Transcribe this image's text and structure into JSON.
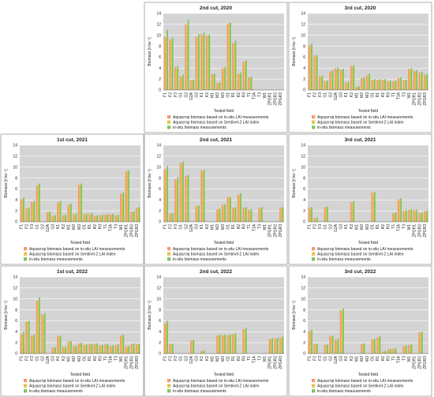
{
  "colors": {
    "series1": "#f29b6c",
    "series2": "#e6c347",
    "series3": "#7cc45a"
  },
  "shared": {
    "ylabel": "Biomass [t·ha⁻¹]",
    "xlabel": "Tested field",
    "ylim": [
      0,
      14
    ],
    "yticks": [
      0,
      2,
      4,
      6,
      8,
      10,
      12,
      14
    ],
    "legend": [
      "Aquacrop biomass based on in-situ LAI measurements",
      "Aquacrop biomass based on Sentinel-2 LAI index",
      "in-situ biomass measurements"
    ]
  },
  "chart_data": [
    {
      "type": "bar",
      "title": "2nd cut, 2020",
      "categories": [
        "F1",
        "F2",
        "F3",
        "G1",
        "G2",
        "G2A",
        "G3",
        "K1",
        "K2",
        "M1",
        "M2",
        "M3",
        "O1",
        "R1",
        "R2",
        "R3",
        "T1",
        "T1A",
        "T3",
        "W1",
        "ZPGR1",
        "ZPGR2",
        "ZPGR3"
      ],
      "series": [
        {
          "values": [
            9.8,
            9.3,
            4.2,
            2.5,
            12.0,
            1.8,
            9.8,
            10.2,
            10.0,
            2.9,
            1.3,
            4.0,
            12.0,
            8.6,
            3.0,
            5.2,
            2.3,
            0,
            0,
            0,
            0,
            0,
            0
          ]
        },
        {
          "values": [
            9.5,
            9.0,
            4.0,
            2.4,
            11.8,
            1.7,
            9.6,
            10.0,
            9.8,
            2.8,
            1.2,
            3.9,
            12.2,
            8.5,
            2.9,
            5.1,
            2.3,
            0,
            0,
            0,
            0,
            0,
            0
          ]
        },
        {
          "values": [
            11.0,
            9.6,
            4.4,
            2.8,
            12.8,
            1.9,
            10.2,
            10.5,
            10.1,
            3.0,
            1.4,
            4.2,
            12.3,
            9.0,
            3.2,
            5.5,
            2.4,
            0,
            0,
            0,
            0,
            0,
            0
          ]
        }
      ]
    },
    {
      "type": "bar",
      "title": "3rd cut, 2020",
      "categories": [
        "F1",
        "F2",
        "F3",
        "G1",
        "G2",
        "G2A",
        "G3",
        "K1",
        "K2",
        "M1",
        "M2",
        "M3",
        "O1",
        "R1",
        "R2",
        "R3",
        "T1",
        "T1A",
        "T3",
        "W1",
        "ZPGR1",
        "ZPGR2",
        "ZPGR3"
      ],
      "series": [
        {
          "values": [
            8.2,
            6.3,
            2.5,
            1.6,
            3.4,
            4.0,
            3.8,
            1.4,
            4.4,
            0.6,
            2.2,
            2.6,
            1.9,
            1.8,
            1.9,
            1.6,
            1.6,
            2.2,
            1.8,
            3.9,
            3.5,
            3.2,
            2.8
          ]
        },
        {
          "values": [
            8.0,
            6.1,
            2.4,
            1.5,
            3.3,
            3.8,
            3.6,
            1.3,
            4.2,
            0.5,
            2.1,
            2.8,
            1.8,
            1.9,
            1.8,
            1.5,
            1.5,
            2.0,
            1.7,
            3.7,
            3.3,
            3.0,
            2.6
          ]
        },
        {
          "values": [
            8.4,
            6.4,
            2.6,
            1.7,
            3.6,
            4.1,
            3.9,
            1.5,
            4.5,
            0.7,
            2.3,
            3.0,
            2.0,
            2.0,
            2.0,
            1.7,
            1.7,
            2.3,
            1.9,
            4.0,
            3.6,
            3.3,
            2.9
          ]
        }
      ]
    },
    {
      "type": "bar",
      "title": "1st cut, 2021",
      "categories": [
        "F1",
        "F2",
        "F3",
        "G1",
        "G2",
        "G2A",
        "G3",
        "K1",
        "K2",
        "M1",
        "M2",
        "M3",
        "O1",
        "R1",
        "R2",
        "R3",
        "T1",
        "T1A",
        "T3",
        "W1",
        "ZPGR1",
        "ZPGR2",
        "ZPGR3"
      ],
      "series": [
        {
          "values": [
            4.2,
            2.5,
            3.6,
            6.6,
            0,
            1.8,
            1.1,
            3.6,
            1.2,
            3.1,
            1.4,
            6.8,
            1.4,
            1.5,
            1.1,
            1.2,
            1.3,
            1.4,
            1.2,
            5.2,
            9.2,
            1.9,
            2.6
          ]
        },
        {
          "values": [
            4.0,
            2.4,
            3.5,
            6.7,
            0,
            1.7,
            1.0,
            3.5,
            1.1,
            3.0,
            1.3,
            6.7,
            1.3,
            1.4,
            1.0,
            1.1,
            1.2,
            1.3,
            1.1,
            5.0,
            9.3,
            1.8,
            2.5
          ]
        },
        {
          "values": [
            4.4,
            2.6,
            3.8,
            7.0,
            0,
            1.9,
            1.2,
            3.8,
            1.3,
            3.3,
            1.5,
            7.0,
            1.5,
            1.6,
            1.2,
            1.3,
            1.4,
            1.5,
            1.3,
            5.4,
            9.4,
            2.0,
            2.7
          ]
        }
      ]
    },
    {
      "type": "bar",
      "title": "2nd cut, 2021",
      "categories": [
        "F1",
        "F2",
        "F3",
        "G1",
        "G2",
        "G2A",
        "G3",
        "K1",
        "K2",
        "M1",
        "M2",
        "M3",
        "O1",
        "R1",
        "R2",
        "R3",
        "T1",
        "T1A",
        "T3",
        "W1",
        "ZPGR1",
        "ZPGR2",
        "ZPGR3"
      ],
      "series": [
        {
          "values": [
            9.6,
            1.5,
            7.8,
            10.8,
            8.4,
            0,
            2.9,
            9.4,
            0,
            0,
            2.3,
            3.1,
            4.6,
            2.6,
            5.0,
            2.6,
            2.2,
            0,
            2.6,
            0,
            0,
            0,
            2.6
          ]
        },
        {
          "values": [
            9.4,
            1.4,
            7.6,
            10.6,
            8.2,
            0,
            2.8,
            9.3,
            0,
            0,
            2.2,
            3.0,
            4.4,
            2.5,
            4.8,
            2.5,
            2.1,
            0,
            2.5,
            0,
            0,
            0,
            2.5
          ]
        },
        {
          "values": [
            10.2,
            1.6,
            8.2,
            11.0,
            8.6,
            0,
            3.0,
            9.5,
            0,
            0,
            2.4,
            3.2,
            4.5,
            2.7,
            5.2,
            2.7,
            2.3,
            0,
            2.7,
            0,
            0,
            0,
            2.7
          ]
        }
      ]
    },
    {
      "type": "bar",
      "title": "3rd cut, 2021",
      "categories": [
        "F1",
        "F2",
        "F3",
        "G1",
        "G2",
        "G2A",
        "G3",
        "K1",
        "K2",
        "M1",
        "M2",
        "M3",
        "O1",
        "R1",
        "R2",
        "R3",
        "T1",
        "T1A",
        "T3",
        "W1",
        "ZPGR1",
        "ZPGR2",
        "ZPGR3"
      ],
      "series": [
        {
          "values": [
            2.6,
            0.7,
            0,
            2.7,
            0,
            0,
            0,
            0,
            3.6,
            0,
            0,
            0,
            5.4,
            0,
            0,
            0,
            1.6,
            4.2,
            2.0,
            2.2,
            2.1,
            1.6,
            2.0
          ]
        },
        {
          "values": [
            2.5,
            0.6,
            0,
            2.6,
            0,
            0,
            0,
            0,
            3.5,
            0,
            0,
            0,
            5.2,
            0,
            0,
            0,
            1.5,
            4.0,
            1.9,
            2.1,
            2.0,
            1.5,
            1.9
          ]
        },
        {
          "values": [
            2.7,
            0.8,
            0,
            2.8,
            0,
            0,
            0,
            0,
            3.8,
            0,
            0,
            0,
            5.5,
            0,
            0,
            0,
            1.7,
            4.3,
            2.1,
            2.3,
            2.2,
            1.7,
            2.1
          ]
        }
      ]
    },
    {
      "type": "bar",
      "title": "1st cut, 2022",
      "categories": [
        "F1",
        "F2",
        "F3",
        "G1",
        "G2",
        "G2A",
        "G3",
        "K1",
        "K2",
        "M1",
        "M2",
        "M3",
        "O1",
        "R1",
        "R2",
        "R3",
        "T1",
        "T1A",
        "T3",
        "W1",
        "ZPGR1",
        "ZPGR2",
        "ZPGR3"
      ],
      "series": [
        {
          "values": [
            3.7,
            5.8,
            3.3,
            9.6,
            7.2,
            0,
            1.1,
            3.2,
            1.2,
            2.2,
            1.4,
            1.9,
            1.6,
            1.7,
            1.8,
            1.5,
            1.7,
            1.4,
            1.6,
            3.3,
            1.3,
            1.8,
            1.7
          ]
        },
        {
          "values": [
            3.5,
            5.9,
            3.2,
            9.8,
            7.0,
            0,
            1.0,
            3.1,
            1.1,
            2.1,
            1.3,
            1.8,
            1.5,
            1.6,
            1.7,
            1.4,
            1.6,
            1.3,
            1.5,
            3.2,
            1.2,
            1.7,
            1.6
          ]
        },
        {
          "values": [
            4.0,
            6.0,
            3.5,
            10.3,
            7.4,
            0,
            1.2,
            3.3,
            1.3,
            2.3,
            1.5,
            2.0,
            1.7,
            1.8,
            1.9,
            1.6,
            1.8,
            1.5,
            1.7,
            3.5,
            1.4,
            1.9,
            1.8
          ]
        }
      ]
    },
    {
      "type": "bar",
      "title": "2nd cut, 2022",
      "categories": [
        "F1",
        "F2",
        "F3",
        "G1",
        "G2",
        "G2A",
        "G3",
        "K1",
        "K2",
        "M1",
        "M2",
        "M3",
        "O1",
        "R1",
        "R2",
        "R3",
        "T1",
        "T1A",
        "T3",
        "W1",
        "ZPGR1",
        "ZPGR2",
        "ZPGR3"
      ],
      "series": [
        {
          "values": [
            5.6,
            1.7,
            0,
            0,
            0,
            2.4,
            0,
            0.5,
            0,
            0,
            3.3,
            3.4,
            3.4,
            3.6,
            0,
            4.5,
            0,
            0,
            0,
            0,
            2.7,
            2.8,
            3.0
          ]
        },
        {
          "values": [
            5.4,
            1.6,
            0,
            0,
            0,
            2.3,
            0,
            0.4,
            0,
            0,
            3.2,
            3.3,
            3.3,
            3.5,
            0,
            4.4,
            0,
            0,
            0,
            0,
            2.6,
            2.7,
            2.9
          ]
        },
        {
          "values": [
            6.0,
            1.8,
            0,
            0,
            0,
            2.5,
            0,
            0.6,
            0,
            0,
            3.5,
            3.5,
            3.5,
            3.7,
            0,
            4.7,
            0,
            0,
            0,
            0,
            2.8,
            2.9,
            3.1
          ]
        }
      ]
    },
    {
      "type": "bar",
      "title": "3rd cut, 2022",
      "categories": [
        "F1",
        "F2",
        "F3",
        "G1",
        "G2",
        "G2A",
        "G3",
        "K1",
        "K2",
        "M1",
        "M2",
        "M3",
        "O1",
        "R1",
        "R2",
        "R3",
        "T1",
        "T1A",
        "T3",
        "W1",
        "ZPGR1",
        "ZPGR2",
        "ZPGR3"
      ],
      "series": [
        {
          "values": [
            4.2,
            1.7,
            0,
            1.6,
            3.2,
            2.6,
            8.0,
            0,
            0,
            0,
            1.8,
            0,
            2.6,
            3.0,
            0.4,
            0.8,
            0.9,
            0,
            1.4,
            1.6,
            0,
            3.9,
            0
          ]
        },
        {
          "values": [
            4.0,
            1.6,
            0,
            1.5,
            3.1,
            2.5,
            7.8,
            0,
            0,
            0,
            1.7,
            0,
            2.5,
            2.9,
            0.3,
            0.7,
            0.8,
            0,
            1.3,
            1.5,
            0,
            3.8,
            0
          ]
        },
        {
          "values": [
            4.4,
            1.8,
            0,
            1.7,
            3.3,
            2.8,
            8.3,
            0,
            0,
            0,
            1.9,
            0,
            2.7,
            3.2,
            0.5,
            0.9,
            1.0,
            0,
            1.5,
            1.7,
            0,
            4.0,
            0
          ]
        }
      ]
    }
  ]
}
